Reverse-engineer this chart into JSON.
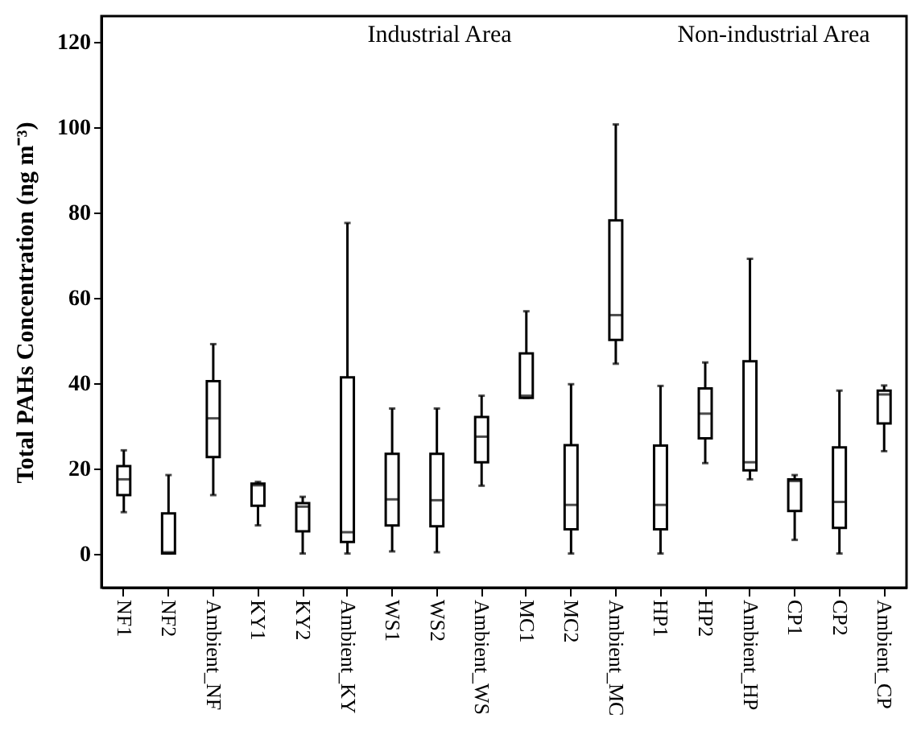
{
  "chart_data": {
    "type": "box",
    "ylabel": "Total PAHs Concentration (ng m⁻³)",
    "categories": [
      "NF1",
      "NF2",
      "Ambient_NF",
      "KY1",
      "KY2",
      "Ambient_KY",
      "WS1",
      "WS2",
      "Ambient_WS",
      "MC1",
      "MC2",
      "Ambient_MC",
      "HP1",
      "HP2",
      "Ambient_HP",
      "CP1",
      "CP2",
      "Ambient_CP"
    ],
    "boxes": [
      {
        "low": 9.7,
        "q1": 13.7,
        "median": 17.4,
        "q3": 20.5,
        "high": 24.2
      },
      {
        "low": 0,
        "q1": 0,
        "median": 0.3,
        "q3": 9.4,
        "high": 18.4
      },
      {
        "low": 13.7,
        "q1": 22.6,
        "median": 31.7,
        "q3": 40.4,
        "high": 49.1
      },
      {
        "low": 6.6,
        "q1": 11.2,
        "median": 16,
        "q3": 16.4,
        "high": 16.8
      },
      {
        "low": 0,
        "q1": 5.2,
        "median": 11,
        "q3": 11.8,
        "high": 13.3
      },
      {
        "low": 0,
        "q1": 2.7,
        "median": 5,
        "q3": 41.3,
        "high": 77.5
      },
      {
        "low": 0.5,
        "q1": 6.6,
        "median": 12.7,
        "q3": 23.4,
        "high": 34
      },
      {
        "low": 0.3,
        "q1": 6.4,
        "median": 12.5,
        "q3": 23.4,
        "high": 34
      },
      {
        "low": 15.9,
        "q1": 21.4,
        "median": 27.4,
        "q3": 32,
        "high": 37
      },
      {
        "low": 36.5,
        "q1": 36.5,
        "median": 37,
        "q3": 46.9,
        "high": 56.8
      },
      {
        "low": 0,
        "q1": 5.7,
        "median": 11.4,
        "q3": 25.4,
        "high": 39.7
      },
      {
        "low": 44.5,
        "q1": 50.1,
        "median": 55.9,
        "q3": 78.1,
        "high": 100.6
      },
      {
        "low": 0,
        "q1": 5.7,
        "median": 11.4,
        "q3": 25.3,
        "high": 39.3
      },
      {
        "low": 21.2,
        "q1": 27,
        "median": 32.8,
        "q3": 38.7,
        "high": 44.8
      },
      {
        "low": 17.4,
        "q1": 19.5,
        "median": 21.4,
        "q3": 45.1,
        "high": 69.1
      },
      {
        "low": 3.2,
        "q1": 10,
        "median": 17,
        "q3": 17.4,
        "high": 18.4
      },
      {
        "low": 0,
        "q1": 6,
        "median": 12.1,
        "q3": 24.9,
        "high": 38.2
      },
      {
        "low": 24,
        "q1": 30.5,
        "median": 37.3,
        "q3": 38.2,
        "high": 39.4
      }
    ],
    "ylim": [
      -8,
      126
    ],
    "yticks": [
      0,
      20,
      40,
      60,
      80,
      100,
      120
    ],
    "annotations": [
      "Industrial Area",
      "Non-industrial Area"
    ]
  }
}
